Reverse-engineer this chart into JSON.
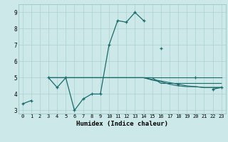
{
  "title": "",
  "xlabel": "Humidex (Indice chaleur)",
  "bg_color": "#cce8e8",
  "grid_color": "#aad0d0",
  "line_color": "#1a6b6b",
  "xlim": [
    -0.5,
    23.5
  ],
  "ylim": [
    2.8,
    9.5
  ],
  "xticks": [
    0,
    1,
    2,
    3,
    4,
    5,
    6,
    7,
    8,
    9,
    10,
    11,
    12,
    13,
    14,
    15,
    16,
    17,
    18,
    19,
    20,
    21,
    22,
    23
  ],
  "yticks": [
    3,
    4,
    5,
    6,
    7,
    8,
    9
  ],
  "lines": [
    {
      "x": [
        0,
        1,
        3,
        4,
        5,
        6,
        7,
        8,
        9,
        10,
        11,
        12,
        13,
        14,
        16,
        18,
        20,
        22,
        23
      ],
      "y": [
        3.4,
        3.6,
        5.0,
        4.4,
        5.0,
        3.0,
        3.7,
        4.0,
        4.0,
        7.0,
        8.5,
        8.4,
        9.0,
        8.5,
        6.8,
        4.6,
        5.0,
        4.3,
        4.4
      ],
      "segments": [
        [
          [
            0,
            1
          ],
          [
            3.4,
            3.6
          ]
        ],
        [
          [
            3,
            4,
            5,
            6,
            7,
            8,
            9,
            10,
            11,
            12,
            13,
            14
          ],
          [
            5.0,
            4.4,
            5.0,
            3.0,
            3.7,
            4.0,
            4.0,
            7.0,
            8.5,
            8.4,
            9.0,
            8.5
          ]
        ],
        [
          [
            16
          ],
          [
            6.8
          ]
        ],
        [
          [
            18
          ],
          [
            4.6
          ]
        ],
        [
          [
            20
          ],
          [
            5.0
          ]
        ],
        [
          [
            22,
            23
          ],
          [
            4.3,
            4.4
          ]
        ]
      ],
      "markers": true
    },
    {
      "x": [
        3,
        23
      ],
      "y": [
        5.0,
        5.0
      ],
      "markers": false
    },
    {
      "x": [
        3,
        15,
        16,
        17,
        18,
        19,
        20,
        21,
        22,
        23
      ],
      "y": [
        5.0,
        5.0,
        4.65,
        4.65,
        4.65,
        4.65,
        4.65,
        4.65,
        4.65,
        4.65
      ],
      "markers": false
    },
    {
      "x": [
        3,
        14,
        15,
        16,
        17,
        18,
        19,
        20,
        21,
        22,
        23
      ],
      "y": [
        5.0,
        5.0,
        4.85,
        4.75,
        4.6,
        4.5,
        4.45,
        4.45,
        4.4,
        4.4,
        4.4
      ],
      "markers": false
    },
    {
      "x": [
        3,
        14,
        15,
        16,
        17,
        18,
        19,
        20,
        21,
        22,
        23
      ],
      "y": [
        5.0,
        5.0,
        4.9,
        4.8,
        4.7,
        4.6,
        4.5,
        4.45,
        4.4,
        4.4,
        4.4
      ],
      "markers": false
    }
  ]
}
